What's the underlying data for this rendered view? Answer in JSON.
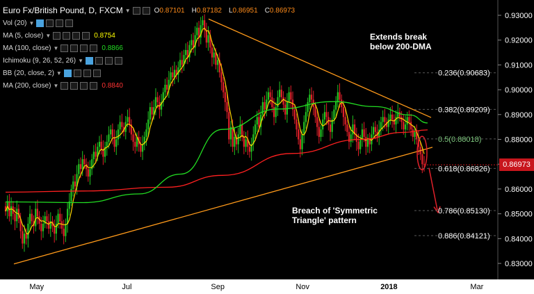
{
  "header": {
    "symbol": "Euro Fx/British Pound, D, FXCM",
    "ohlc": [
      {
        "label": "O",
        "value": "0.87101"
      },
      {
        "label": "H",
        "value": "0.87182"
      },
      {
        "label": "L",
        "value": "0.86951"
      },
      {
        "label": "C",
        "value": "0.86973"
      }
    ]
  },
  "indicators": [
    {
      "label": "Vol (20)",
      "value": "",
      "color": "#cccccc"
    },
    {
      "label": "MA (5, close)",
      "value": "0.8754",
      "color": "#ffff00"
    },
    {
      "label": "MA (100, close)",
      "value": "0.8866",
      "color": "#22dd22"
    },
    {
      "label": "Ichimoku (9, 26, 52, 26)",
      "value": "",
      "color": "#cccccc"
    },
    {
      "label": "BB (20, close, 2)",
      "value": "",
      "color": "#cccccc"
    },
    {
      "label": "MA (200, close)",
      "value": "0.8840",
      "color": "#ff3333"
    }
  ],
  "annotations": {
    "top": [
      "Extends break",
      "below 200-DMA"
    ],
    "bottom": [
      "Breach of 'Symmetric",
      "Triangle' pattern"
    ]
  },
  "last_price": "0.86973",
  "colors": {
    "up": "#22c322",
    "down": "#e0202a",
    "trend": "#ff9a1a",
    "ma100": "#22dd22",
    "ma200": "#ff2020",
    "ma5": "#ffd400",
    "fib": "#9a9a9a"
  },
  "chart_data": {
    "type": "candlestick",
    "title": "Euro Fx/British Pound, D, FXCM",
    "ylim": [
      0.825,
      0.935
    ],
    "y_ticks": [
      "0.93000",
      "0.92000",
      "0.91000",
      "0.90000",
      "0.89000",
      "0.88000",
      "0.87000",
      "0.86000",
      "0.85000",
      "0.84000",
      "0.83000"
    ],
    "x_ticks": [
      "May",
      "Jul",
      "Sep",
      "Nov",
      "2018",
      "Mar"
    ],
    "fib_levels": [
      {
        "label": "0.236(0.90683)",
        "value": 0.90683
      },
      {
        "label": "0.382(0.89209)",
        "value": 0.89209
      },
      {
        "label": "0.5(0.88018)",
        "value": 0.88018
      },
      {
        "label": "0.618(0.86826)",
        "value": 0.86826
      },
      {
        "label": "0.786(0.85130)",
        "value": 0.8513
      },
      {
        "label": "0.886(0.84121)",
        "value": 0.84121
      }
    ],
    "closes": [
      0.851,
      0.855,
      0.849,
      0.853,
      0.85,
      0.847,
      0.852,
      0.848,
      0.843,
      0.838,
      0.842,
      0.84,
      0.846,
      0.85,
      0.847,
      0.845,
      0.852,
      0.849,
      0.846,
      0.843,
      0.846,
      0.849,
      0.847,
      0.844,
      0.847,
      0.845,
      0.842,
      0.846,
      0.85,
      0.847,
      0.844,
      0.841,
      0.846,
      0.852,
      0.855,
      0.86,
      0.863,
      0.861,
      0.866,
      0.87,
      0.868,
      0.872,
      0.87,
      0.868,
      0.865,
      0.868,
      0.872,
      0.875,
      0.873,
      0.877,
      0.879,
      0.876,
      0.873,
      0.877,
      0.879,
      0.882,
      0.884,
      0.881,
      0.877,
      0.88,
      0.884,
      0.887,
      0.885,
      0.883,
      0.887,
      0.889,
      0.886,
      0.882,
      0.879,
      0.877,
      0.881,
      0.878,
      0.875,
      0.878,
      0.881,
      0.884,
      0.888,
      0.893,
      0.89,
      0.893,
      0.897,
      0.895,
      0.892,
      0.895,
      0.899,
      0.902,
      0.9,
      0.904,
      0.907,
      0.905,
      0.908,
      0.906,
      0.909,
      0.912,
      0.91,
      0.914,
      0.916,
      0.913,
      0.918,
      0.92,
      0.917,
      0.922,
      0.925,
      0.921,
      0.926,
      0.928,
      0.924,
      0.919,
      0.922,
      0.917,
      0.913,
      0.915,
      0.91,
      0.912,
      0.907,
      0.903,
      0.899,
      0.895,
      0.891,
      0.88,
      0.885,
      0.877,
      0.881,
      0.878,
      0.882,
      0.886,
      0.881,
      0.877,
      0.88,
      0.877,
      0.875,
      0.878,
      0.882,
      0.886,
      0.889,
      0.885,
      0.89,
      0.895,
      0.892,
      0.896,
      0.899,
      0.897,
      0.893,
      0.889,
      0.893,
      0.897,
      0.9,
      0.897,
      0.894,
      0.89,
      0.895,
      0.899,
      0.896,
      0.892,
      0.888,
      0.884,
      0.88,
      0.876,
      0.882,
      0.887,
      0.891,
      0.895,
      0.898,
      0.896,
      0.893,
      0.889,
      0.885,
      0.881,
      0.884,
      0.888,
      0.891,
      0.889,
      0.886,
      0.883,
      0.888,
      0.892,
      0.895,
      0.899,
      0.896,
      0.893,
      0.889,
      0.886,
      0.883,
      0.879,
      0.882,
      0.886,
      0.882,
      0.879,
      0.876,
      0.88,
      0.884,
      0.881,
      0.877,
      0.88,
      0.878,
      0.882,
      0.885,
      0.883,
      0.881,
      0.884,
      0.887,
      0.889,
      0.887,
      0.885,
      0.888,
      0.89,
      0.888,
      0.886,
      0.889,
      0.891,
      0.889,
      0.887,
      0.884,
      0.886,
      0.889,
      0.887,
      0.884,
      0.881,
      0.883,
      0.88,
      0.877,
      0.874,
      0.87,
      0.8697
    ]
  }
}
